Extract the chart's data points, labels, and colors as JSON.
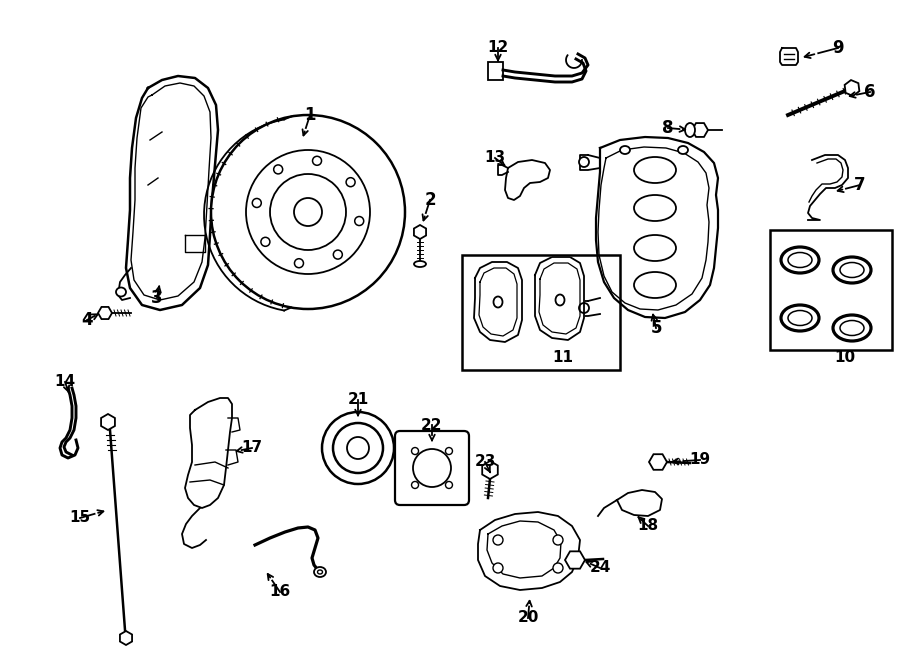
{
  "background_color": "#ffffff",
  "line_color": "#000000",
  "lw": 1.3,
  "figsize": [
    9.0,
    6.61
  ],
  "dpi": 100
}
